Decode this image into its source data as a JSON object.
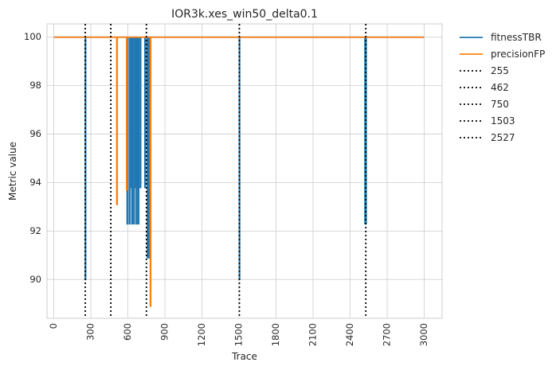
{
  "chart_data": {
    "type": "line",
    "title": "IOR3k.xes_win50_delta0.1",
    "xlabel": "Trace",
    "ylabel": "Metric value",
    "xlim": [
      -55,
      3145
    ],
    "ylim": [
      88.4,
      100.55
    ],
    "x_ticks": [
      0,
      300,
      600,
      900,
      1200,
      1500,
      1800,
      2100,
      2400,
      2700,
      3000
    ],
    "y_ticks": [
      90,
      92,
      94,
      96,
      98,
      100
    ],
    "grid": true,
    "legend_position": "outside-right",
    "series": [
      {
        "name": "fitnessTBR",
        "color": "#1f77b4",
        "points": [
          [
            0,
            100
          ],
          [
            255,
            100
          ],
          [
            255,
            90.0
          ],
          [
            258,
            90.0
          ],
          [
            258,
            100
          ],
          [
            590,
            100
          ],
          [
            590,
            93.8
          ],
          [
            594,
            93.8
          ],
          [
            594,
            92.3
          ],
          [
            598,
            92.3
          ],
          [
            598,
            100
          ],
          [
            612,
            100
          ],
          [
            612,
            92.3
          ],
          [
            616,
            92.3
          ],
          [
            616,
            100
          ],
          [
            628,
            100
          ],
          [
            628,
            93.8
          ],
          [
            632,
            93.8
          ],
          [
            632,
            92.3
          ],
          [
            636,
            92.3
          ],
          [
            636,
            100
          ],
          [
            648,
            100
          ],
          [
            648,
            92.3
          ],
          [
            652,
            92.3
          ],
          [
            652,
            100
          ],
          [
            664,
            100
          ],
          [
            664,
            93.8
          ],
          [
            668,
            93.8
          ],
          [
            668,
            92.3
          ],
          [
            672,
            92.3
          ],
          [
            672,
            100
          ],
          [
            680,
            100
          ],
          [
            680,
            93.8
          ],
          [
            684,
            93.8
          ],
          [
            684,
            92.3
          ],
          [
            688,
            92.3
          ],
          [
            688,
            100
          ],
          [
            700,
            100
          ],
          [
            700,
            93.8
          ],
          [
            704,
            93.8
          ],
          [
            704,
            100
          ],
          [
            738,
            100
          ],
          [
            738,
            93.8
          ],
          [
            742,
            93.8
          ],
          [
            742,
            100
          ],
          [
            756,
            100
          ],
          [
            756,
            95.5
          ],
          [
            758,
            95.5
          ],
          [
            758,
            90.9
          ],
          [
            762,
            90.9
          ],
          [
            762,
            100
          ],
          [
            768,
            100
          ],
          [
            768,
            90.9
          ],
          [
            776,
            90.9
          ],
          [
            776,
            100
          ],
          [
            1503,
            100
          ],
          [
            1503,
            90.0
          ],
          [
            1505,
            90.0
          ],
          [
            1505,
            100
          ],
          [
            2520,
            100
          ],
          [
            2520,
            92.3
          ],
          [
            2530,
            92.3
          ],
          [
            2530,
            100
          ],
          [
            3000,
            100
          ]
        ]
      },
      {
        "name": "precisionFP",
        "color": "#ff7f0e",
        "points": [
          [
            0,
            100
          ],
          [
            510,
            100
          ],
          [
            510,
            93.1
          ],
          [
            514,
            93.1
          ],
          [
            514,
            100
          ],
          [
            590,
            100
          ],
          [
            590,
            93.7
          ],
          [
            594,
            93.7
          ],
          [
            594,
            100
          ],
          [
            782,
            100
          ],
          [
            782,
            88.9
          ],
          [
            785,
            88.9
          ],
          [
            785,
            100
          ],
          [
            3000,
            100
          ]
        ]
      }
    ],
    "vlines": {
      "color": "#000000",
      "style": "dotted",
      "values": [
        {
          "label": "255",
          "x": 255
        },
        {
          "label": "462",
          "x": 462
        },
        {
          "label": "750",
          "x": 750
        },
        {
          "label": "1503",
          "x": 1503
        },
        {
          "label": "2527",
          "x": 2527
        }
      ]
    }
  }
}
